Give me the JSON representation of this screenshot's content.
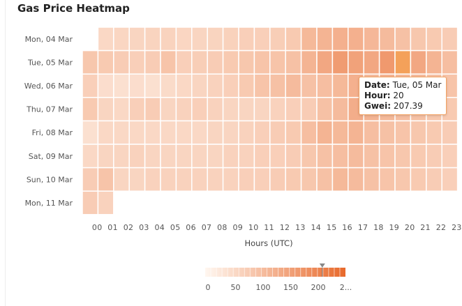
{
  "title": "Gas Price Heatmap",
  "chart_data": {
    "type": "heatmap",
    "title": "Gas Price Heatmap",
    "xlabel": "Hours (UTC)",
    "ylabel": "",
    "x_categories": [
      "00",
      "01",
      "02",
      "03",
      "04",
      "05",
      "06",
      "07",
      "08",
      "09",
      "10",
      "11",
      "12",
      "13",
      "14",
      "15",
      "16",
      "17",
      "18",
      "19",
      "20",
      "21",
      "22",
      "23"
    ],
    "y_categories": [
      "Mon, 04 Mar",
      "Tue, 05 Mar",
      "Wed, 06 Mar",
      "Thu, 07 Mar",
      "Fri, 08 Mar",
      "Sat, 09 Mar",
      "Sun, 10 Mar",
      "Mon, 11 Mar"
    ],
    "values": [
      [
        null,
        55,
        58,
        60,
        62,
        64,
        58,
        60,
        62,
        66,
        70,
        70,
        72,
        80,
        110,
        118,
        125,
        125,
        112,
        105,
        95,
        85,
        80,
        75
      ],
      [
        85,
        80,
        75,
        70,
        75,
        90,
        70,
        72,
        75,
        80,
        85,
        90,
        90,
        95,
        118,
        140,
        160,
        150,
        140,
        165,
        207.39,
        140,
        118,
        100
      ],
      [
        70,
        45,
        40,
        45,
        40,
        50,
        55,
        60,
        65,
        70,
        80,
        90,
        95,
        105,
        95,
        100,
        110,
        125,
        105,
        118,
        110,
        105,
        95,
        90
      ],
      [
        80,
        60,
        55,
        70,
        75,
        60,
        65,
        70,
        65,
        60,
        60,
        60,
        65,
        70,
        75,
        95,
        105,
        130,
        118,
        110,
        100,
        95,
        85,
        80
      ],
      [
        40,
        55,
        55,
        55,
        55,
        55,
        55,
        55,
        60,
        60,
        65,
        70,
        75,
        80,
        100,
        118,
        110,
        118,
        100,
        95,
        90,
        85,
        80,
        75
      ],
      [
        55,
        60,
        60,
        65,
        60,
        60,
        60,
        60,
        60,
        65,
        65,
        70,
        70,
        75,
        85,
        95,
        100,
        105,
        95,
        90,
        85,
        80,
        75,
        70
      ],
      [
        75,
        90,
        60,
        60,
        65,
        65,
        65,
        65,
        65,
        65,
        70,
        70,
        75,
        80,
        85,
        95,
        110,
        105,
        95,
        90,
        85,
        80,
        75,
        70
      ],
      [
        75,
        65,
        null,
        null,
        null,
        null,
        null,
        null,
        null,
        null,
        null,
        null,
        null,
        null,
        null,
        null,
        null,
        null,
        null,
        null,
        null,
        null,
        null,
        null
      ]
    ],
    "color_scale": {
      "min": 0,
      "max": 250,
      "min_color": "#fff7f0",
      "max_color": "#e8692b",
      "ticks": [
        "0",
        "50",
        "100",
        "150",
        "200",
        "2..."
      ],
      "marker_value": 207.39
    },
    "tooltip": {
      "date_label": "Date:",
      "date_value": "Tue, 05 Mar",
      "hour_label": "Hour:",
      "hour_value": "20",
      "gwei_label": "Gwei:",
      "gwei_value": "207.39"
    },
    "highlight": {
      "day": "Tue, 05 Mar",
      "hour": "20"
    }
  }
}
